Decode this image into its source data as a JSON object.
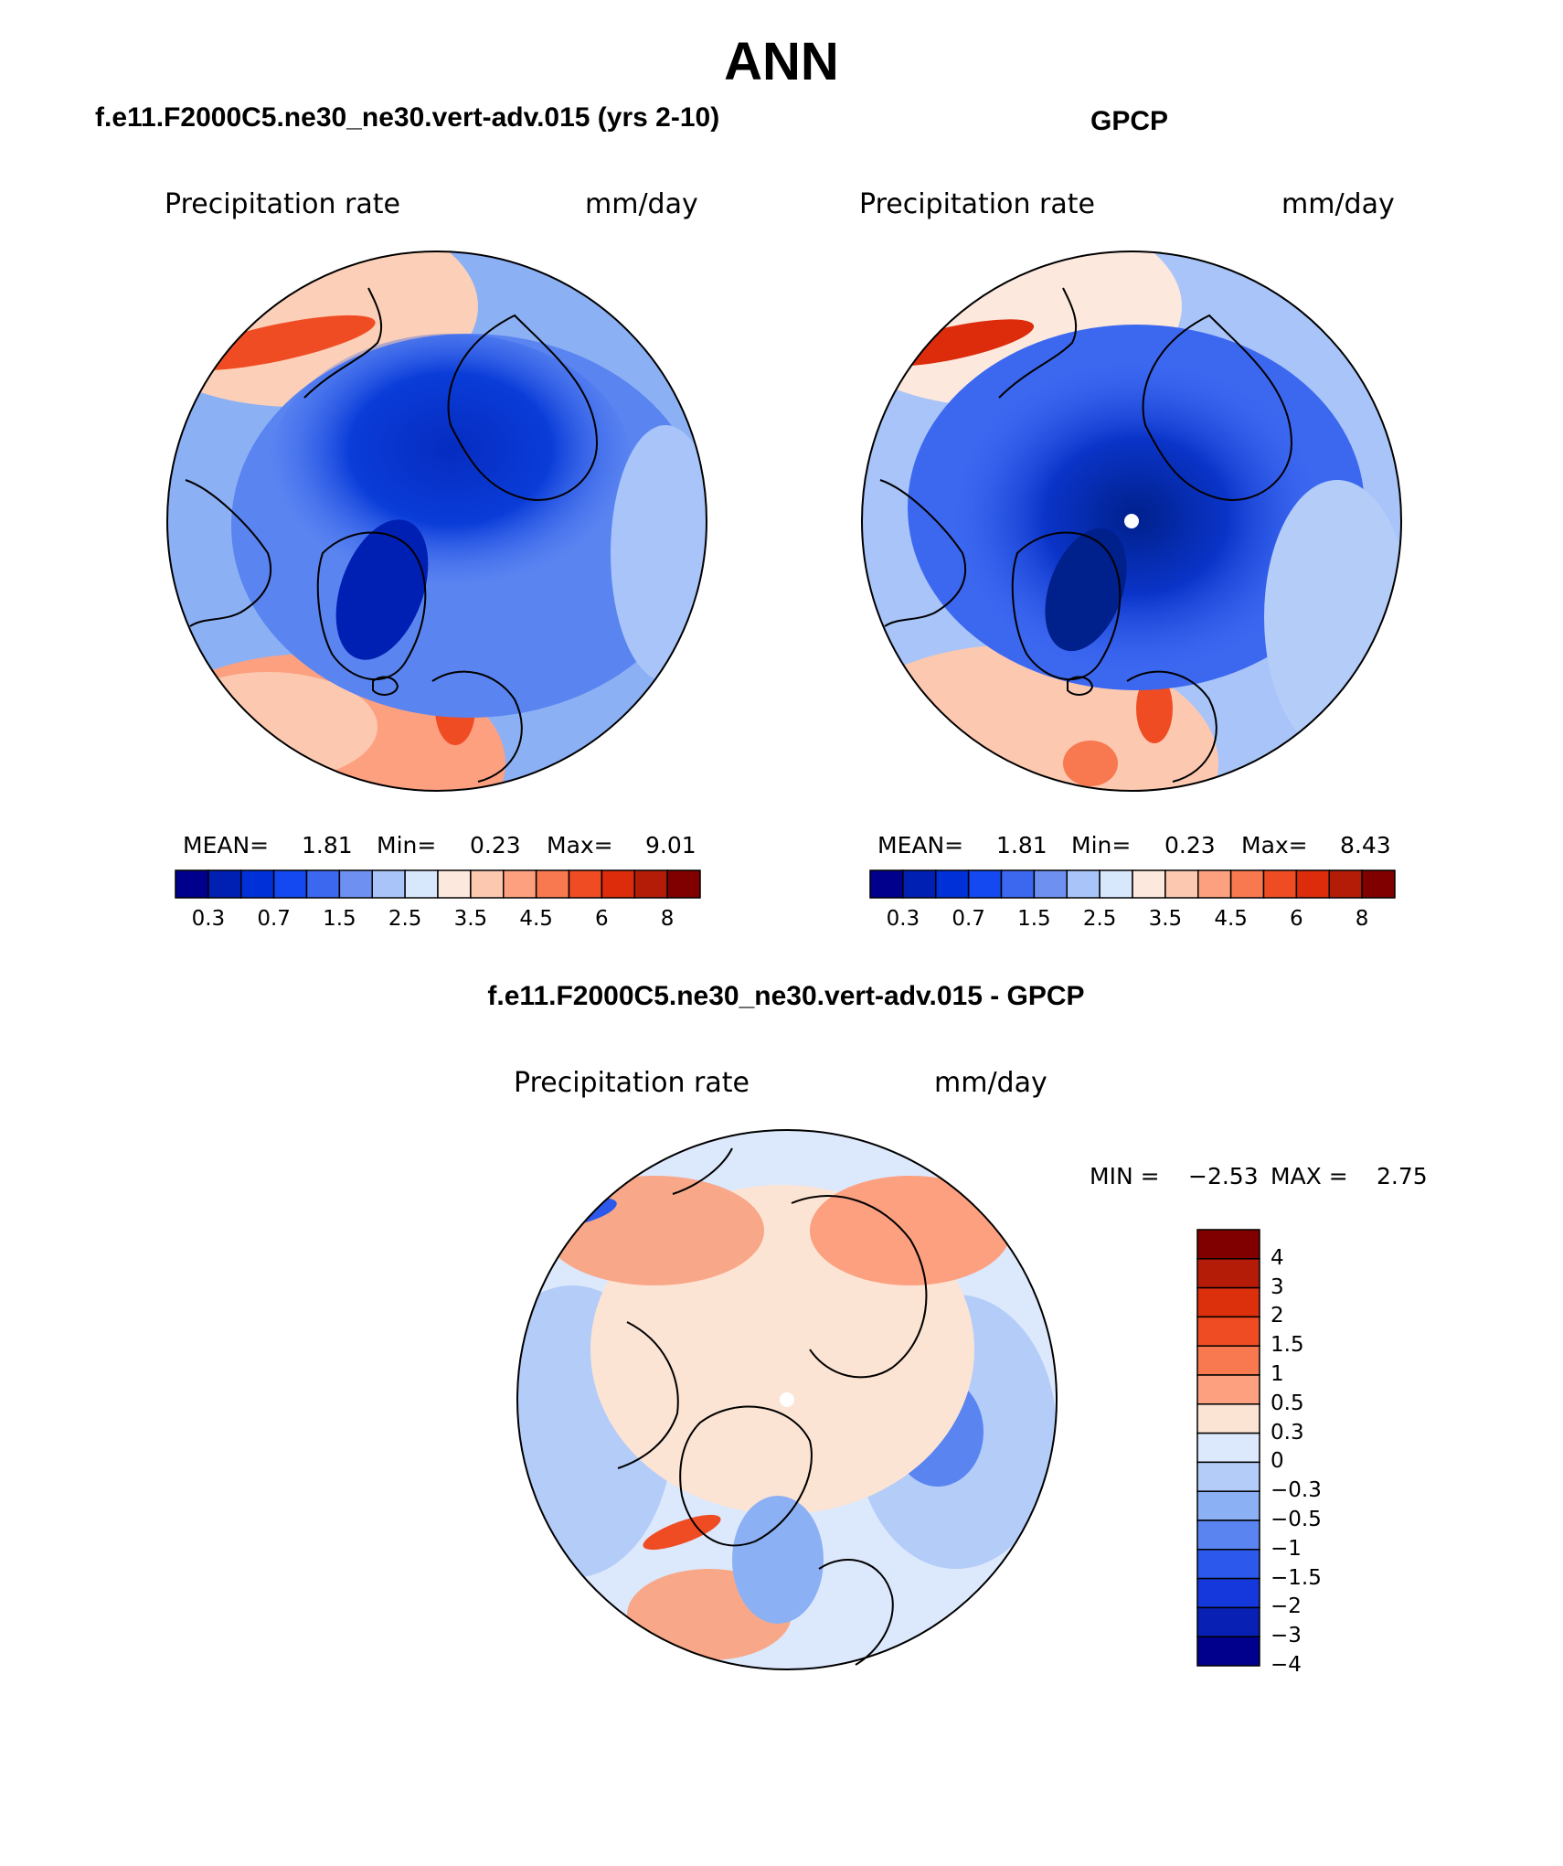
{
  "figure": {
    "title": "ANN"
  },
  "panels": [
    {
      "id": "model",
      "title": "f.e11.F2000C5.ne30_ne30.vert-adv.015 (yrs 2-10)",
      "variable": "Precipitation rate",
      "units": "mm/day",
      "stats": {
        "mean_label": "MEAN=",
        "mean": "1.81",
        "min_label": "Min=",
        "min": "0.23",
        "max_label": "Max=",
        "max": "9.01"
      }
    },
    {
      "id": "obs",
      "title": "GPCP",
      "variable": "Precipitation rate",
      "units": "mm/day",
      "stats": {
        "mean_label": "MEAN=",
        "mean": "1.81",
        "min_label": "Min=",
        "min": "0.23",
        "max_label": "Max=",
        "max": "8.43"
      }
    },
    {
      "id": "diff",
      "title": "f.e11.F2000C5.ne30_ne30.vert-adv.015 - GPCP",
      "variable": "Precipitation rate",
      "units": "mm/day",
      "stats": {
        "min_label": "MIN =",
        "min": "−2.53",
        "max_label": "MAX =",
        "max": "2.75"
      }
    }
  ],
  "colorbars": {
    "absolute": {
      "colors": [
        "#00008c",
        "#0020b4",
        "#0030d8",
        "#1448f0",
        "#3c68f0",
        "#6e90f0",
        "#a8c4f8",
        "#d8e8fc",
        "#fce8dc",
        "#fcc8b0",
        "#fca080",
        "#f87850",
        "#f04c24",
        "#dc2c0c",
        "#b41c08",
        "#800000"
      ],
      "tick_labels": [
        "0.3",
        "0.7",
        "1.5",
        "2.5",
        "3.5",
        "4.5",
        "6",
        "8"
      ]
    },
    "difference": {
      "colors": [
        "#800000",
        "#b41c08",
        "#dc300c",
        "#f04c24",
        "#f87850",
        "#fca080",
        "#fce4d4",
        "#dce8fc",
        "#b4ccf8",
        "#8cb0f4",
        "#5a84f0",
        "#2c58ec",
        "#1438dc",
        "#0820b4",
        "#00008c"
      ],
      "tick_labels": [
        "4",
        "3",
        "2",
        "1.5",
        "1",
        "0.5",
        "0.3",
        "0",
        "−0.3",
        "−0.5",
        "−1",
        "−1.5",
        "−2",
        "−3",
        "−4"
      ]
    }
  },
  "map_colors": {
    "ocean_far": "#b4ccf8",
    "arctic_deep": "#0a3cd8",
    "arctic_core": "#062cc0",
    "atlantic_warm": "#fca080",
    "pacific_warm": "#fcd0b8",
    "pacific_band": "#f04c24",
    "diff_neutral": "#fce4d4",
    "diff_negative": "#c4d8fa",
    "diff_positive": "#f8a888",
    "coast": "#000000",
    "pole_marker": "#ffffff"
  }
}
